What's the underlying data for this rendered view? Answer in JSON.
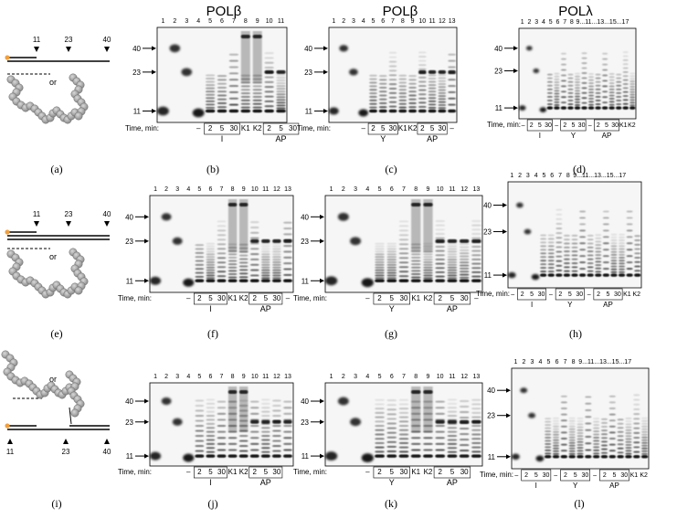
{
  "headers": [
    "POLβ",
    "POLβ",
    "POLλ"
  ],
  "captions": [
    "(a)",
    "(b)",
    "(c)",
    "(d)",
    "(e)",
    "(f)",
    "(g)",
    "(h)",
    "(i)",
    "(j)",
    "(k)",
    "(l)"
  ],
  "time_label": "Time, min:",
  "schematic": {
    "or_text": "or",
    "positions": [
      "11",
      "23",
      "40"
    ]
  },
  "gels": [
    {
      "id": "b",
      "lane_numbers": [
        "1",
        "2",
        "3",
        "4",
        "5",
        "6",
        "7",
        "8",
        "9",
        "10",
        "11"
      ],
      "size_markers": [
        "40",
        "23",
        "11"
      ],
      "time_labels": [
        "–",
        "2",
        "5",
        "30",
        "K1",
        "K2",
        "2",
        "5",
        "30"
      ],
      "group_labels": [
        "I",
        "AP"
      ]
    },
    {
      "id": "c",
      "lane_numbers": [
        "1",
        "2",
        "3",
        "4",
        "5",
        "6",
        "7",
        "8",
        "9",
        "10",
        "11",
        "12",
        "13"
      ],
      "size_markers": [
        "40",
        "23",
        "11"
      ],
      "time_labels": [
        "–",
        "2",
        "5",
        "30",
        "K1",
        "K2",
        "2",
        "5",
        "30",
        "–"
      ],
      "group_labels": [
        "Y",
        "AP"
      ]
    },
    {
      "id": "d",
      "lane_numbers": [
        "1",
        "2",
        "3",
        "4",
        "5",
        "6",
        "7",
        "8",
        "9...11...13...15...17"
      ],
      "size_markers": [
        "40",
        "23",
        "11"
      ],
      "time_labels": [
        "–",
        "2",
        "5",
        "30",
        "–",
        "2",
        "5",
        "30",
        "–",
        "2",
        "5",
        "30",
        "K1",
        "K2"
      ],
      "group_labels": [
        "I",
        "Y",
        "AP"
      ]
    },
    {
      "id": "f",
      "lane_numbers": [
        "1",
        "2",
        "3",
        "4",
        "5",
        "6",
        "7",
        "8",
        "9",
        "10",
        "11",
        "12",
        "13"
      ],
      "size_markers": [
        "40",
        "23",
        "11"
      ],
      "time_labels": [
        "–",
        "2",
        "5",
        "30",
        "K1",
        "K2",
        "2",
        "5",
        "30",
        "–"
      ],
      "group_labels": [
        "I",
        "AP"
      ]
    },
    {
      "id": "g",
      "lane_numbers": [
        "1",
        "2",
        "3",
        "4",
        "5",
        "6",
        "7",
        "8",
        "9",
        "10",
        "11",
        "12",
        "13"
      ],
      "size_markers": [
        "40",
        "23",
        "11"
      ],
      "time_labels": [
        "–",
        "2",
        "5",
        "30",
        "K1",
        "K2",
        "2",
        "5",
        "30",
        "–"
      ],
      "group_labels": [
        "Y",
        "AP"
      ]
    },
    {
      "id": "h",
      "lane_numbers": [
        "1",
        "2",
        "3",
        "4",
        "5",
        "6",
        "7",
        "8",
        "9...11...13...15...17"
      ],
      "size_markers": [
        "40",
        "23",
        "11"
      ],
      "time_labels": [
        "–",
        "2",
        "5",
        "30",
        "–",
        "2",
        "5",
        "30",
        "–",
        "2",
        "5",
        "30",
        "K1",
        "K2"
      ],
      "group_labels": [
        "I",
        "Y",
        "AP"
      ]
    },
    {
      "id": "j",
      "lane_numbers": [
        "1",
        "2",
        "3",
        "4",
        "5",
        "6",
        "7",
        "8",
        "9",
        "10",
        "11",
        "12",
        "13"
      ],
      "size_markers": [
        "40",
        "23",
        "11"
      ],
      "time_labels": [
        "–",
        "2",
        "5",
        "30",
        "K1",
        "K2",
        "2",
        "5",
        "30"
      ],
      "group_labels": [
        "I",
        "AP"
      ]
    },
    {
      "id": "k",
      "lane_numbers": [
        "1",
        "2",
        "3",
        "4",
        "5",
        "6",
        "7",
        "8",
        "9",
        "10",
        "11",
        "12",
        "13"
      ],
      "size_markers": [
        "40",
        "23",
        "11"
      ],
      "time_labels": [
        "–",
        "2",
        "5",
        "30",
        "K1",
        "K2",
        "2",
        "5",
        "30"
      ],
      "group_labels": [
        "Y",
        "AP"
      ]
    },
    {
      "id": "l",
      "lane_numbers": [
        "1",
        "2",
        "3",
        "4",
        "5",
        "6",
        "7",
        "8",
        "9...11...13...15...17"
      ],
      "size_markers": [
        "40",
        "23",
        "11"
      ],
      "time_labels": [
        "–",
        "2",
        "5",
        "30",
        "–",
        "2",
        "5",
        "30",
        "–",
        "2",
        "5",
        "30",
        "K1",
        "K2"
      ],
      "group_labels": [
        "I",
        "Y",
        "AP"
      ]
    }
  ]
}
